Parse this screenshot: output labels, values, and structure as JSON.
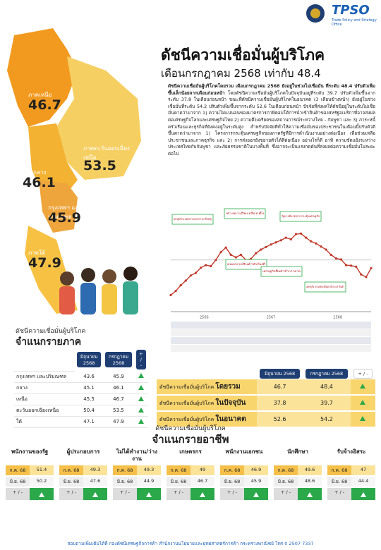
{
  "header": {
    "logo": "TPSO",
    "org": "Trade Policy and Strategy Office"
  },
  "title": "ดัชนีความเชื่อมั่นผู้บริโภค",
  "subtitle": "เดือนกรกฎาคม 2568 เท่ากับ 48.4",
  "summary_lead": "ดัชนีความเชื่อมั่นผู้บริโภคโดยรวม เดือนกรกฎาคม 2568 ยังอยู่ในช่วงไม่เชื่อมั่น ที่ระดับ 48.4 ปรับตัวเพิ่มขึ้นเล็กน้อยจากเดือนก่อนหน้า",
  "summary": "โดยดัชนีความเชื่อมั่นผู้บริโภคในปัจจุบันอยู่ที่ระดับ 39.7 ปรับตัวเพิ่มขึ้นจากระดับ 37.8 ในเดือนก่อนหน้า ขณะที่ดัชนีความเชื่อมั่นผู้บริโภคในอนาคต (3 เดือนข้างหน้า) ยังอยู่ในช่วงเชื่อมั่นที่ระดับ 54.2 ปรับตัวเพิ่มขึ้นจากระดับ 52.6 ในเดือนก่อนหน้า ปัจจัยที่ส่งผลให้ดัชนีอยู่ในระดับไม่เชื่อมั่นคาดว่ามาจาก 1) ความไม่แน่นอนของมาตรการภาษีตอบโต้การนำเข้าสินค้าของสหรัฐอเมริกาที่อาจส่งผลต่อเศรษฐกิจโลกและเศรษฐกิจไทย 2) ความตึงเครียดของสถานการณ์ระหว่างไทย - กัมพูชา และ 3) ภาระหนี้ครัวเรือนและธุรกิจที่ยังคงอยู่ในระดับสูง สำหรับปัจจัยที่ทำให้ความเชื่อมั่นของประชาชนในเดือนนี้ปรับตัวดีขึ้นคาดว่ามาจาก 1) โครงการกระตุ้นเศรษฐกิจของภาครัฐที่มีการดำเนินงานอย่างต่อเนื่อง เพื่อช่วยเหลือประชาชนและภาคธุรกิจ และ 2) การส่งออกยังขยายตัวได้ดีต่อเนื่อง อย่างไรก็ดี อาทิ ความขัดแย้งระหว่างประเทศไทยกับกัมพูชา และภัยธรรมชาติในบางพื้นที่ ซึ่งอาจจะเป็นแรงกดดันที่ส่งผลต่อความเชื่อมั่นในระยะต่อไป",
  "regions_map": [
    {
      "label": "ภาคเหนือ",
      "value": 46.7
    },
    {
      "label": "ภาคตะวันออกเฉียงเหนือ",
      "value": 53.5
    },
    {
      "label": "ภาคกลาง",
      "value": 46.1
    },
    {
      "label": "กรุงเทพฯ และปริมณฑล",
      "value": 45.9
    },
    {
      "label": "ภาคใต้",
      "value": 47.9
    }
  ],
  "chart_data": {
    "type": "line",
    "color": "#c0392b",
    "values": [
      43.2,
      44.0,
      45.1,
      46.0,
      47.0,
      47.5,
      48.5,
      49.0,
      48.8,
      50.0,
      51.5,
      52.4,
      51.0,
      50.5,
      51.0,
      50.0,
      50.2,
      51.3,
      52.0,
      52.5,
      53.0,
      53.4,
      53.8,
      54.3,
      54.0,
      55.0,
      55.1,
      54.3,
      53.6,
      53.2,
      52.6,
      52.0,
      51.0,
      50.3,
      50.1,
      49.0,
      48.9,
      48.7,
      47.2,
      46.7,
      48.4
    ],
    "ylim": [
      40,
      58
    ],
    "ref_line": 50,
    "years": [
      "2566",
      "2567",
      "2568"
    ],
    "annotations": [
      "เศรษฐกิจชะลอตัวจากมาตรการภาษีสหรัฐ",
      "ช่วงหาเสียงเลือกตั้ง",
      "รัฐบาลมีมาตรการกระตุ้นเศรษฐกิจ",
      "ยอดขายสินค้ายังไม่ดี",
      "เศรษฐกิจฟื้นตัวช้ากว่าคาด",
      "เศรษฐกิจ ประเทศจะมีปัญหาด้านราคาสินค้า"
    ]
  },
  "region_table": {
    "caption": "ดัชนีความเชื่อมั่นผู้บริโภค",
    "title": "จำแนกรายภาค",
    "columns": [
      "มิถุนายน 2568",
      "กรกฎาคม 2568",
      "+ / -"
    ],
    "rows": [
      [
        "กรุงเทพฯ และปริมณฑล",
        43.6,
        45.9
      ],
      [
        "กลาง",
        45.1,
        46.1
      ],
      [
        "เหนือ",
        45.5,
        46.7
      ],
      [
        "ตะวันออกเฉียงเหนือ",
        50.4,
        53.5
      ],
      [
        "ใต้",
        47.1,
        47.9
      ]
    ]
  },
  "overall_table": {
    "columns": [
      "มิถุนายน 2568",
      "กรกฎาคม 2568",
      "+ / -"
    ],
    "rows": [
      [
        "ดัชนีความเชื่อมั่นผู้บริโภค",
        "โดยรวม",
        46.7,
        48.4
      ],
      [
        "ดัชนีความเชื่อมั่นผู้บริโภค",
        "ในปัจจุบัน",
        37.8,
        39.7
      ],
      [
        "ดัชนีความเชื่อมั่นผู้บริโภค",
        "ในอนาคต",
        52.6,
        54.2
      ]
    ]
  },
  "occupation": {
    "caption": "ดัชนีความเชื่อมั่นผู้บริโภค",
    "title": "จำแนกรายอาชีพ",
    "cur_label": "ก.ค. 68",
    "prev_label": "มิ.ย. 68",
    "change_label": "+ / -",
    "groups": [
      {
        "name": "พนักงานของรัฐ",
        "cur": 51.4,
        "prev": 50.2
      },
      {
        "name": "ผู้ประกอบการ",
        "cur": 49.3,
        "prev": 47.6
      },
      {
        "name": "ไม่ได้ทำงาน/ว่างงาน",
        "cur": 49.3,
        "prev": 44.9
      },
      {
        "name": "เกษตรกร",
        "cur": 49.0,
        "prev": 46.7
      },
      {
        "name": "พนักงานเอกชน",
        "cur": 46.9,
        "prev": 45.9
      },
      {
        "name": "นักศึกษา",
        "cur": 49.6,
        "prev": 48.6
      },
      {
        "name": "รับจ้างอิสระ",
        "cur": 47.0,
        "prev": 44.4
      }
    ]
  },
  "footer": "สอบถามเพิ่มเติมได้ที่ กองดัชนีเศรษฐกิจการค้า สำนักงานนโยบายและยุทธศาสตร์การค้า กระทรวงพาณิชย์ โทร 0 2507 7337"
}
